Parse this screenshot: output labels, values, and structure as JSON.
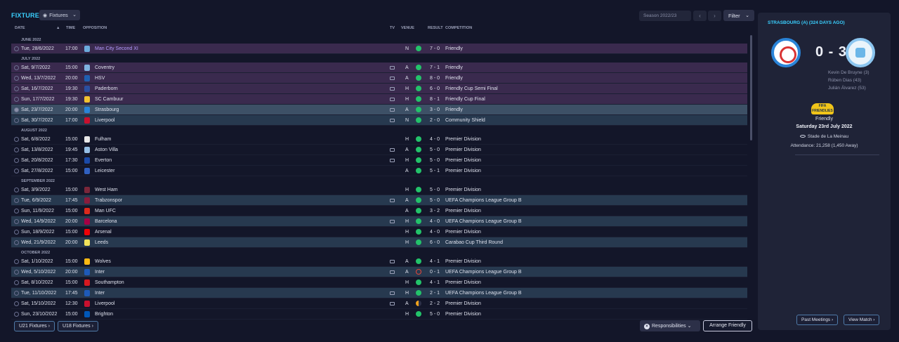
{
  "header": {
    "title": "FIXTURES",
    "view_dropdown": "Fixtures",
    "season": "Season 2022/23",
    "filter": "Filter"
  },
  "columns": {
    "date": "DATE",
    "sort_arrow": "▲",
    "time": "TIME",
    "opposition": "OPPOSITION",
    "tv": "TV",
    "venue": "VENUE",
    "result": "RESULT",
    "competition": "COMPETITION"
  },
  "months": [
    {
      "label": "JUNE 2022",
      "rows": [
        {
          "date": "Tue, 28/6/2022",
          "time": "17:00",
          "opp": "Man City Second XI",
          "tv": false,
          "venue": "N",
          "outcome": "win",
          "result": "7 - 0",
          "comp": "Friendly",
          "hl": "purple",
          "crest": "#6cabdd",
          "opp_color": "#b49cff"
        }
      ]
    },
    {
      "label": "JULY 2022",
      "rows": [
        {
          "date": "Sat, 9/7/2022",
          "time": "15:00",
          "opp": "Coventry",
          "tv": true,
          "venue": "A",
          "outcome": "win",
          "result": "7 - 1",
          "comp": "Friendly",
          "hl": "purple",
          "crest": "#7fb3e0"
        },
        {
          "date": "Wed, 13/7/2022",
          "time": "20:00",
          "opp": "HSV",
          "tv": true,
          "venue": "A",
          "outcome": "win",
          "result": "8 - 0",
          "comp": "Friendly",
          "hl": "purple",
          "crest": "#1f5fb0"
        },
        {
          "date": "Sat, 16/7/2022",
          "time": "19:30",
          "opp": "Paderborn",
          "tv": true,
          "venue": "H",
          "outcome": "win",
          "result": "6 - 0",
          "comp": "Friendly Cup Semi Final",
          "hl": "purple",
          "crest": "#2a4fa0"
        },
        {
          "date": "Sun, 17/7/2022",
          "time": "19:30",
          "opp": "SC Cambuur",
          "tv": true,
          "venue": "H",
          "outcome": "win",
          "result": "8 - 1",
          "comp": "Friendly Cup Final",
          "hl": "purple",
          "crest": "#f2c230"
        },
        {
          "date": "Sat, 23/7/2022",
          "time": "20:00",
          "opp": "Strasbourg",
          "tv": true,
          "venue": "A",
          "outcome": "win",
          "result": "3 - 0",
          "comp": "Friendly",
          "hl": "sel",
          "crest": "#2a84d8",
          "selected": true
        },
        {
          "date": "Sat, 30/7/2022",
          "time": "17:00",
          "opp": "Liverpool",
          "tv": true,
          "venue": "N",
          "outcome": "win",
          "result": "2 - 0",
          "comp": "Community Shield",
          "hl": "blue",
          "crest": "#c8102e"
        }
      ]
    },
    {
      "label": "AUGUST 2022",
      "rows": [
        {
          "date": "Sat, 6/8/2022",
          "time": "15:00",
          "opp": "Fulham",
          "tv": false,
          "venue": "H",
          "outcome": "win",
          "result": "4 - 0",
          "comp": "Premier Division",
          "hl": "",
          "crest": "#e8e8e8"
        },
        {
          "date": "Sat, 13/8/2022",
          "time": "19:45",
          "opp": "Aston Villa",
          "tv": true,
          "venue": "A",
          "outcome": "win",
          "result": "5 - 0",
          "comp": "Premier Division",
          "hl": "",
          "crest": "#95bfe5"
        },
        {
          "date": "Sat, 20/8/2022",
          "time": "17:30",
          "opp": "Everton",
          "tv": true,
          "venue": "H",
          "outcome": "win",
          "result": "5 - 0",
          "comp": "Premier Division",
          "hl": "",
          "crest": "#1b4aa8"
        },
        {
          "date": "Sat, 27/8/2022",
          "time": "15:00",
          "opp": "Leicester",
          "tv": false,
          "venue": "A",
          "outcome": "win",
          "result": "5 - 1",
          "comp": "Premier Division",
          "hl": "",
          "crest": "#3060c0"
        }
      ]
    },
    {
      "label": "SEPTEMBER 2022",
      "rows": [
        {
          "date": "Sat, 3/9/2022",
          "time": "15:00",
          "opp": "West Ham",
          "tv": false,
          "venue": "H",
          "outcome": "win",
          "result": "5 - 0",
          "comp": "Premier Division",
          "hl": "",
          "crest": "#7a263a"
        },
        {
          "date": "Tue, 6/9/2022",
          "time": "17:45",
          "opp": "Trabzonspor",
          "tv": true,
          "venue": "A",
          "outcome": "win",
          "result": "5 - 0",
          "comp": "UEFA Champions League Group B",
          "hl": "blue",
          "crest": "#8a1c3c"
        },
        {
          "date": "Sun, 11/9/2022",
          "time": "15:00",
          "opp": "Man UFC",
          "tv": false,
          "venue": "A",
          "outcome": "win",
          "result": "3 - 2",
          "comp": "Premier Division",
          "hl": "",
          "crest": "#da291c"
        },
        {
          "date": "Wed, 14/9/2022",
          "time": "20:00",
          "opp": "Barcelona",
          "tv": true,
          "venue": "H",
          "outcome": "win",
          "result": "4 - 0",
          "comp": "UEFA Champions League Group B",
          "hl": "blue",
          "crest": "#a50044"
        },
        {
          "date": "Sun, 18/9/2022",
          "time": "15:00",
          "opp": "Arsenal",
          "tv": false,
          "venue": "H",
          "outcome": "win",
          "result": "4 - 0",
          "comp": "Premier Division",
          "hl": "",
          "crest": "#ef0107"
        },
        {
          "date": "Wed, 21/9/2022",
          "time": "20:00",
          "opp": "Leeds",
          "tv": false,
          "venue": "H",
          "outcome": "win",
          "result": "6 - 0",
          "comp": "Carabao Cup Third Round",
          "hl": "blue",
          "crest": "#f2e35a"
        }
      ]
    },
    {
      "label": "OCTOBER 2022",
      "rows": [
        {
          "date": "Sat, 1/10/2022",
          "time": "15:00",
          "opp": "Wolves",
          "tv": true,
          "venue": "A",
          "outcome": "win",
          "result": "4 - 1",
          "comp": "Premier Division",
          "hl": "",
          "crest": "#fdb913"
        },
        {
          "date": "Wed, 5/10/2022",
          "time": "20:00",
          "opp": "Inter",
          "tv": true,
          "venue": "A",
          "outcome": "loss",
          "result": "0 - 1",
          "comp": "UEFA Champions League Group B",
          "hl": "blue",
          "crest": "#1e5ab8"
        },
        {
          "date": "Sat, 8/10/2022",
          "time": "15:00",
          "opp": "Southampton",
          "tv": false,
          "venue": "H",
          "outcome": "win",
          "result": "4 - 1",
          "comp": "Premier Division",
          "hl": "",
          "crest": "#d71920"
        },
        {
          "date": "Tue, 11/10/2022",
          "time": "17:45",
          "opp": "Inter",
          "tv": true,
          "venue": "H",
          "outcome": "win",
          "result": "2 - 1",
          "comp": "UEFA Champions League Group B",
          "hl": "blue",
          "crest": "#1e5ab8"
        },
        {
          "date": "Sat, 15/10/2022",
          "time": "12:30",
          "opp": "Liverpool",
          "tv": true,
          "venue": "A",
          "outcome": "draw",
          "result": "2 - 2",
          "comp": "Premier Division",
          "hl": "",
          "crest": "#c8102e"
        },
        {
          "date": "Sun, 23/10/2022",
          "time": "15:00",
          "opp": "Brighton",
          "tv": false,
          "venue": "H",
          "outcome": "win",
          "result": "5 - 0",
          "comp": "Premier Division",
          "hl": "",
          "crest": "#0057b8"
        }
      ]
    }
  ],
  "footer": {
    "u21": "U21 Fixtures",
    "u18": "U18 Fixtures",
    "responsibilities": "Responsibilities",
    "arrange": "Arrange Friendly"
  },
  "match": {
    "title": "STRASBOURG (A) (324 DAYS AGO)",
    "score": "0 - 3",
    "scorers": [
      "Kevin De Bruyne (3)",
      "Rúben Dias (43)",
      "Julián Álvarez (53)"
    ],
    "comp_logo_text": "FIFA",
    "comp_logo_sub": "FRIENDLIES",
    "competition": "Friendly",
    "date": "Saturday 23rd July 2022",
    "stadium": "Stade de La Meinau",
    "attendance": "Attendance: 21,258 (1,450 Away)",
    "past_meetings": "Past Meetings",
    "view_match": "View Match"
  },
  "colors": {
    "accent": "#3ad0ff",
    "win": "#23c26a",
    "loss": "#e5483b",
    "draw": "#f0a21c"
  }
}
